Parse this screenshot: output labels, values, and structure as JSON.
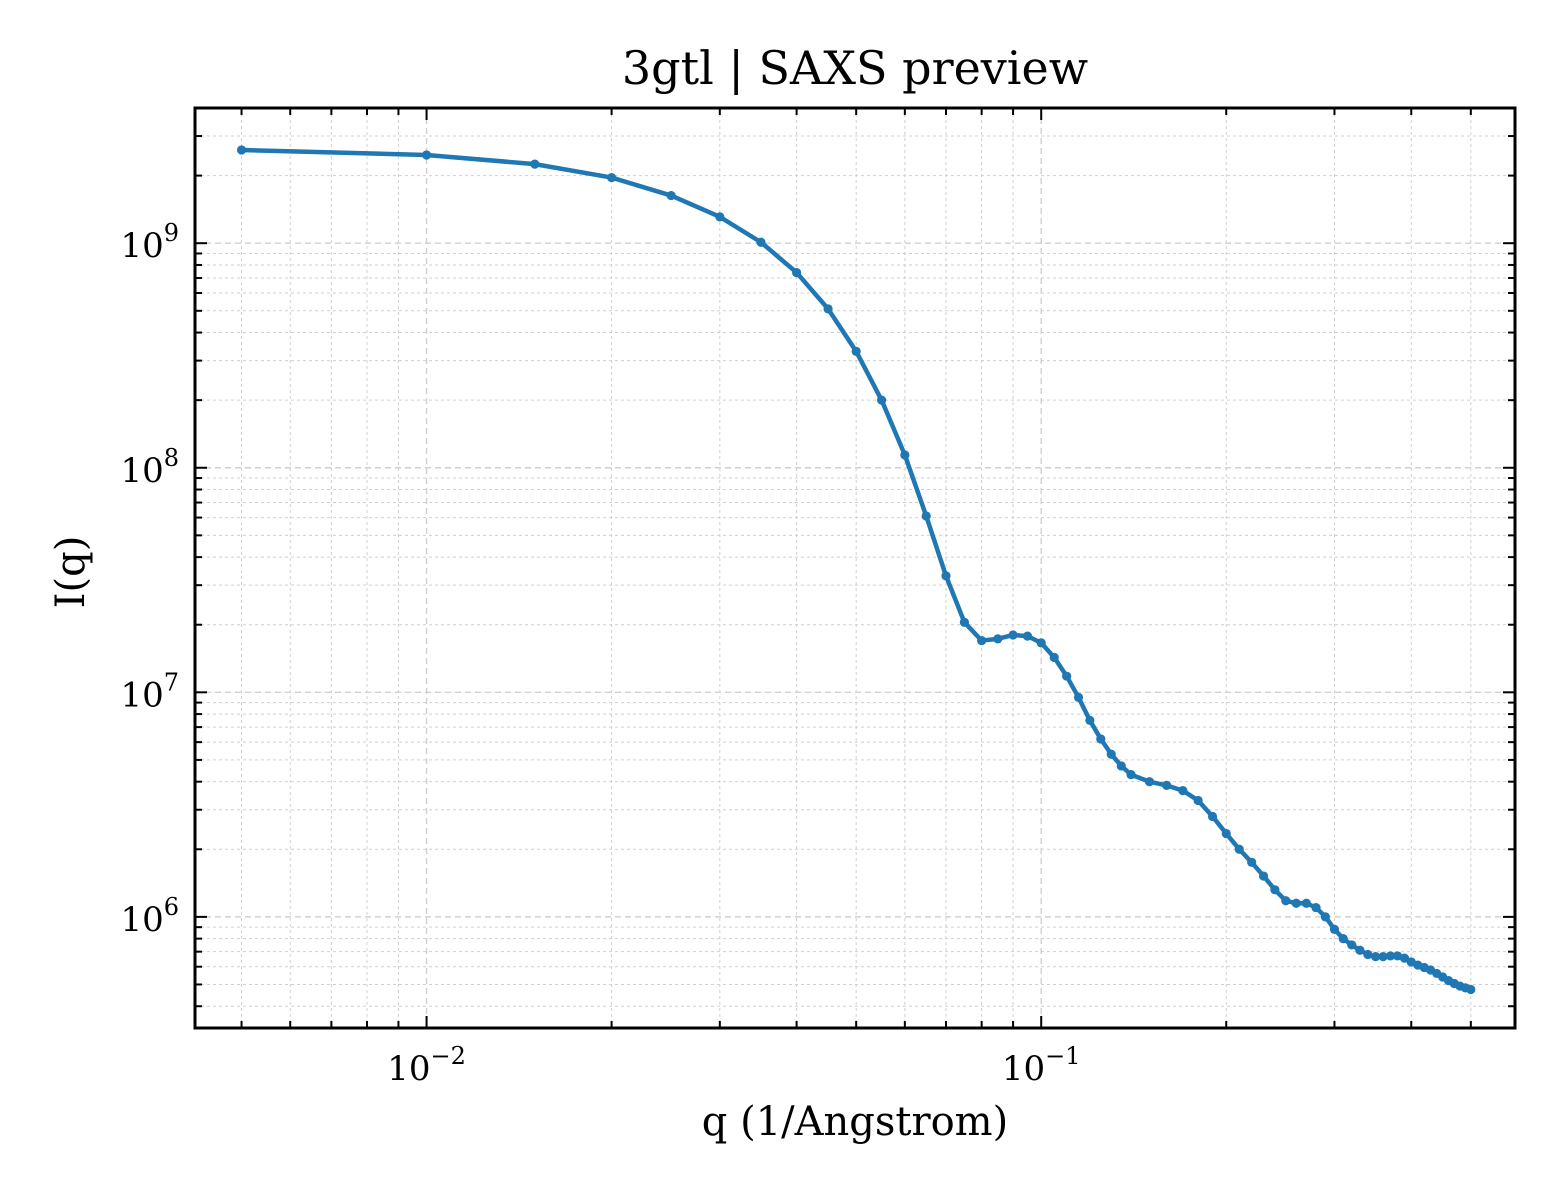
{
  "chart_data": {
    "type": "line",
    "title": "3gtl | SAXS preview",
    "xlabel": "q (1/Angstrom)",
    "ylabel": "I(q)",
    "xscale": "log",
    "yscale": "log",
    "xlim": [
      0.0042,
      0.59
    ],
    "ylim": [
      320000,
      4000000000
    ],
    "grid": true,
    "legend": "none",
    "x_ticks": [
      {
        "value": 0.01,
        "base": "10",
        "exp": "−2"
      },
      {
        "value": 0.1,
        "base": "10",
        "exp": "−1"
      }
    ],
    "y_ticks": [
      {
        "value": 1000000,
        "base": "10",
        "exp": "6"
      },
      {
        "value": 10000000,
        "base": "10",
        "exp": "7"
      },
      {
        "value": 100000000,
        "base": "10",
        "exp": "8"
      },
      {
        "value": 1000000000,
        "base": "10",
        "exp": "9"
      }
    ],
    "series": [
      {
        "color": "#1f77b4",
        "points": [
          [
            0.005,
            2600000000
          ],
          [
            0.01,
            2470000000
          ],
          [
            0.015,
            2250000000
          ],
          [
            0.02,
            1960000000
          ],
          [
            0.025,
            1630000000
          ],
          [
            0.03,
            1310000000
          ],
          [
            0.035,
            1010000000
          ],
          [
            0.04,
            740000000
          ],
          [
            0.045,
            510000000
          ],
          [
            0.05,
            330000000
          ],
          [
            0.055,
            200000000
          ],
          [
            0.06,
            114000000
          ],
          [
            0.065,
            61000000
          ],
          [
            0.07,
            33000000
          ],
          [
            0.075,
            20500000
          ],
          [
            0.08,
            17000000
          ],
          [
            0.085,
            17300000
          ],
          [
            0.09,
            18000000
          ],
          [
            0.095,
            17800000
          ],
          [
            0.1,
            16600000
          ],
          [
            0.105,
            14300000
          ],
          [
            0.11,
            11800000
          ],
          [
            0.115,
            9500000
          ],
          [
            0.12,
            7500000
          ],
          [
            0.125,
            6200000
          ],
          [
            0.13,
            5300000
          ],
          [
            0.135,
            4700000
          ],
          [
            0.14,
            4300000
          ],
          [
            0.15,
            4000000
          ],
          [
            0.16,
            3850000
          ],
          [
            0.17,
            3650000
          ],
          [
            0.18,
            3300000
          ],
          [
            0.19,
            2800000
          ],
          [
            0.2,
            2350000
          ],
          [
            0.21,
            2000000
          ],
          [
            0.22,
            1750000
          ],
          [
            0.23,
            1520000
          ],
          [
            0.24,
            1320000
          ],
          [
            0.25,
            1180000
          ],
          [
            0.26,
            1150000
          ],
          [
            0.27,
            1150000
          ],
          [
            0.28,
            1100000
          ],
          [
            0.29,
            1000000
          ],
          [
            0.3,
            880000
          ],
          [
            0.31,
            800000
          ],
          [
            0.32,
            750000
          ],
          [
            0.33,
            710000
          ],
          [
            0.34,
            680000
          ],
          [
            0.35,
            665000
          ],
          [
            0.36,
            665000
          ],
          [
            0.37,
            670000
          ],
          [
            0.38,
            670000
          ],
          [
            0.39,
            655000
          ],
          [
            0.4,
            630000
          ],
          [
            0.41,
            610000
          ],
          [
            0.42,
            595000
          ],
          [
            0.43,
            580000
          ],
          [
            0.44,
            560000
          ],
          [
            0.45,
            540000
          ],
          [
            0.46,
            520000
          ],
          [
            0.47,
            505000
          ],
          [
            0.48,
            492000
          ],
          [
            0.49,
            483000
          ],
          [
            0.5,
            475000
          ]
        ]
      }
    ]
  }
}
